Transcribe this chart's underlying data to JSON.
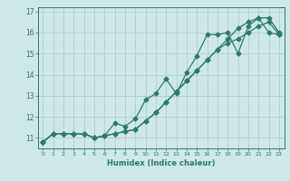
{
  "xlabel": "Humidex (Indice chaleur)",
  "background_color": "#cde8e8",
  "grid_color": "#b0cccc",
  "line_color": "#2d7a6a",
  "xlim": [
    -0.5,
    23.5
  ],
  "ylim": [
    10.5,
    17.2
  ],
  "xticks": [
    0,
    1,
    2,
    3,
    4,
    5,
    6,
    7,
    8,
    9,
    10,
    11,
    12,
    13,
    14,
    15,
    16,
    17,
    18,
    19,
    20,
    21,
    22,
    23
  ],
  "yticks": [
    11,
    12,
    13,
    14,
    15,
    16,
    17
  ],
  "series1_x": [
    0,
    1,
    2,
    3,
    4,
    5,
    6,
    7,
    8,
    9,
    10,
    11,
    12,
    13,
    14,
    15,
    16,
    17,
    18,
    19,
    20,
    21,
    22,
    23
  ],
  "series1_y": [
    10.8,
    11.2,
    11.2,
    11.2,
    11.2,
    11.0,
    11.1,
    11.7,
    11.55,
    11.9,
    12.8,
    13.1,
    13.8,
    13.1,
    14.1,
    14.9,
    15.9,
    15.9,
    16.0,
    15.0,
    16.3,
    16.7,
    16.7,
    16.0
  ],
  "series2_x": [
    0,
    1,
    2,
    3,
    4,
    5,
    6,
    7,
    8,
    9,
    10,
    11,
    12,
    13,
    14,
    15,
    16,
    17,
    18,
    19,
    20,
    21,
    22,
    23
  ],
  "series2_y": [
    10.8,
    11.2,
    11.2,
    11.2,
    11.2,
    11.0,
    11.1,
    11.2,
    11.3,
    11.4,
    11.8,
    12.2,
    12.7,
    13.2,
    13.7,
    14.2,
    14.7,
    15.2,
    15.5,
    15.7,
    16.0,
    16.3,
    16.5,
    15.9
  ],
  "series3_x": [
    0,
    1,
    2,
    3,
    4,
    5,
    6,
    7,
    8,
    9,
    10,
    11,
    12,
    13,
    14,
    15,
    16,
    17,
    18,
    19,
    20,
    21,
    22,
    23
  ],
  "series3_y": [
    10.8,
    11.2,
    11.2,
    11.2,
    11.2,
    11.0,
    11.1,
    11.2,
    11.3,
    11.4,
    11.8,
    12.2,
    12.7,
    13.2,
    13.7,
    14.2,
    14.7,
    15.2,
    15.7,
    16.2,
    16.5,
    16.7,
    16.0,
    15.9
  ]
}
